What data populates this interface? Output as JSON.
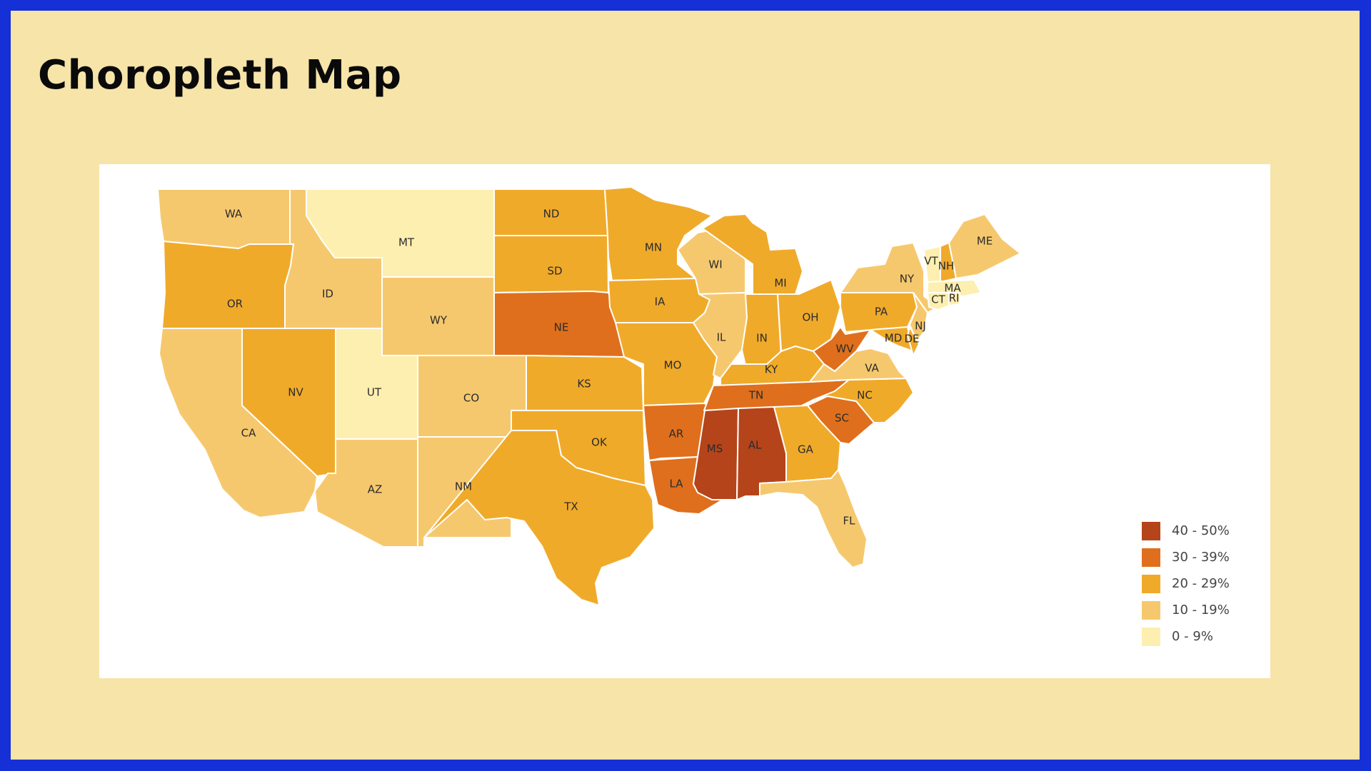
{
  "title": "Choropleth Map",
  "legend": [
    {
      "label": "40 - 50%",
      "color": "#b5441b"
    },
    {
      "label": "30 - 39%",
      "color": "#df6f1c"
    },
    {
      "label": "20 - 29%",
      "color": "#f0aa2a"
    },
    {
      "label": "10 - 19%",
      "color": "#f6c86e"
    },
    {
      "label": "0 - 9%",
      "color": "#fcefb0"
    }
  ],
  "states": [
    {
      "code": "WA",
      "bin": 3
    },
    {
      "code": "OR",
      "bin": 2
    },
    {
      "code": "CA",
      "bin": 3
    },
    {
      "code": "ID",
      "bin": 3
    },
    {
      "code": "NV",
      "bin": 2
    },
    {
      "code": "MT",
      "bin": 4
    },
    {
      "code": "WY",
      "bin": 3
    },
    {
      "code": "UT",
      "bin": 4
    },
    {
      "code": "CO",
      "bin": 3
    },
    {
      "code": "AZ",
      "bin": 3
    },
    {
      "code": "NM",
      "bin": 3
    },
    {
      "code": "ND",
      "bin": 2
    },
    {
      "code": "SD",
      "bin": 2
    },
    {
      "code": "NE",
      "bin": 1
    },
    {
      "code": "KS",
      "bin": 2
    },
    {
      "code": "OK",
      "bin": 2
    },
    {
      "code": "TX",
      "bin": 2
    },
    {
      "code": "MN",
      "bin": 2
    },
    {
      "code": "IA",
      "bin": 2
    },
    {
      "code": "MO",
      "bin": 2
    },
    {
      "code": "AR",
      "bin": 1
    },
    {
      "code": "LA",
      "bin": 1
    },
    {
      "code": "WI",
      "bin": 3
    },
    {
      "code": "IL",
      "bin": 3
    },
    {
      "code": "MI",
      "bin": 2
    },
    {
      "code": "IN",
      "bin": 2
    },
    {
      "code": "OH",
      "bin": 2
    },
    {
      "code": "KY",
      "bin": 2
    },
    {
      "code": "TN",
      "bin": 1
    },
    {
      "code": "MS",
      "bin": 0
    },
    {
      "code": "AL",
      "bin": 0
    },
    {
      "code": "GA",
      "bin": 2
    },
    {
      "code": "FL",
      "bin": 3
    },
    {
      "code": "SC",
      "bin": 1
    },
    {
      "code": "NC",
      "bin": 2
    },
    {
      "code": "VA",
      "bin": 3
    },
    {
      "code": "WV",
      "bin": 1
    },
    {
      "code": "PA",
      "bin": 2
    },
    {
      "code": "NY",
      "bin": 3
    },
    {
      "code": "NJ",
      "bin": 3
    },
    {
      "code": "MD",
      "bin": 2
    },
    {
      "code": "DE",
      "bin": 2
    },
    {
      "code": "VT",
      "bin": 4
    },
    {
      "code": "NH",
      "bin": 2
    },
    {
      "code": "ME",
      "bin": 3
    },
    {
      "code": "MA",
      "bin": 4
    },
    {
      "code": "CT",
      "bin": 4
    },
    {
      "code": "RI",
      "bin": 4
    }
  ]
}
